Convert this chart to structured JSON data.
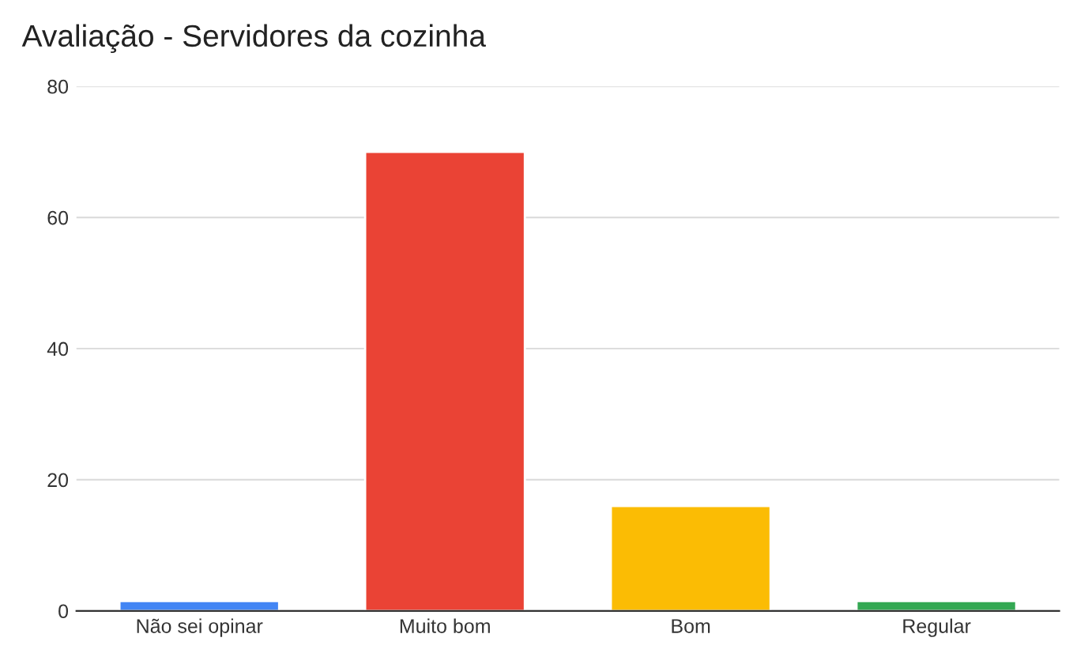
{
  "chart_data": {
    "type": "bar",
    "title": "Avaliação - Servidores da cozinha",
    "categories": [
      "Não sei opinar",
      "Muito bom",
      "Bom",
      "Regular"
    ],
    "values": [
      1.5,
      70,
      16,
      1.5
    ],
    "colors": [
      "#4285f4",
      "#ea4335",
      "#fbbc04",
      "#34a853"
    ],
    "ylim": [
      0,
      80
    ],
    "yticks": [
      0,
      20,
      40,
      60,
      80
    ],
    "grid": "y",
    "legend": false
  }
}
